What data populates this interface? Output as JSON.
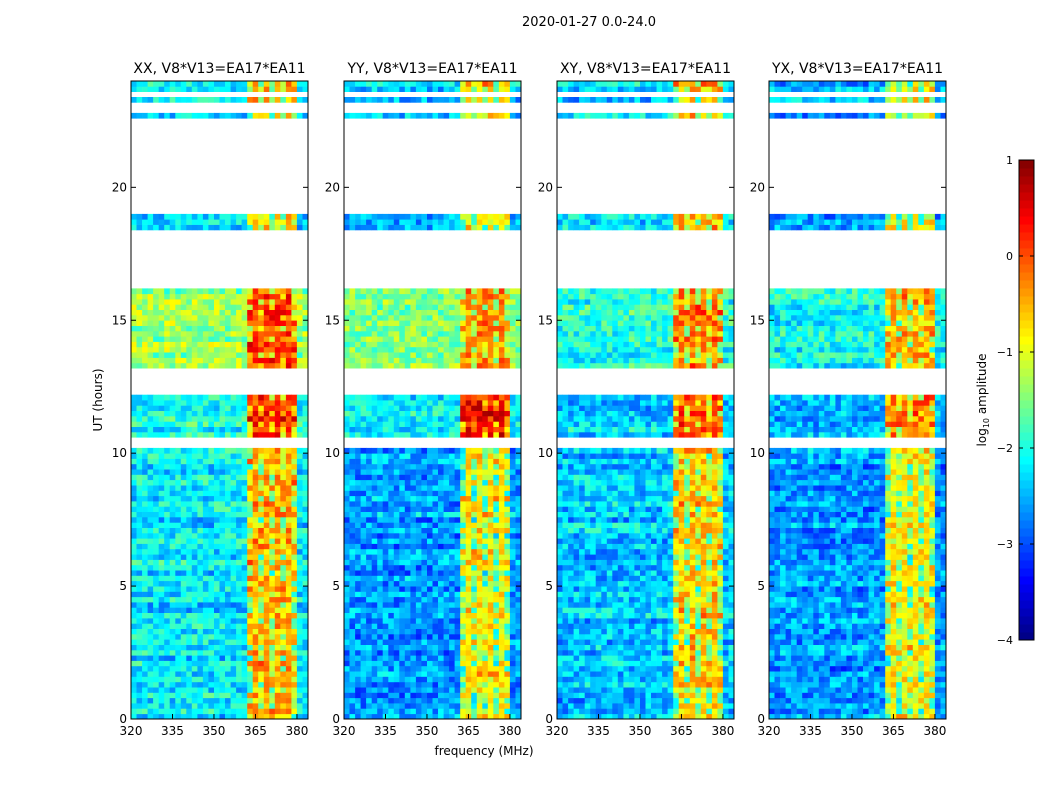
{
  "chart_data": {
    "type": "heatmap",
    "title": "2020-01-27 0.0-24.0",
    "xlabel": "frequency (MHz)",
    "ylabel": "UT (hours)",
    "xlim": [
      320,
      384
    ],
    "ylim": [
      0,
      24
    ],
    "xticks": [
      320,
      335,
      350,
      365,
      380
    ],
    "yticks": [
      0,
      5,
      10,
      15,
      20
    ],
    "colorbar": {
      "label": "log10 amplitude",
      "label_main": "log",
      "label_sub": "10",
      "label_rest": " amplitude",
      "range": [
        -4,
        1
      ],
      "ticks": [
        1,
        0,
        -1,
        -2,
        -3,
        -4
      ],
      "colormap": "jet"
    },
    "flagged_hours": [
      [
        23.4,
        23.6
      ],
      [
        22.7,
        23.1
      ],
      [
        18.9,
        22.5
      ],
      [
        16.2,
        18.2
      ],
      [
        12.2,
        13.0
      ],
      [
        10.2,
        10.5
      ]
    ],
    "rfi_band_mhz": [
      361,
      380
    ],
    "panels": [
      {
        "title": "XX, V8*V13=EA17*EA11",
        "segments": [
          {
            "hours": [
              0,
              10.2
            ],
            "background": -2.2,
            "rfi": -0.5
          },
          {
            "hours": [
              10.5,
              12.2
            ],
            "background": -2.0,
            "rfi": 0.2
          },
          {
            "hours": [
              13.0,
              16.2
            ],
            "background": -1.4,
            "rfi": 0.0
          },
          {
            "hours": [
              18.2,
              24
            ],
            "background": -2.2,
            "rfi": -0.5
          }
        ]
      },
      {
        "title": "YY, V8*V13=EA17*EA11",
        "segments": [
          {
            "hours": [
              0,
              10.2
            ],
            "background": -2.6,
            "rfi": -0.8
          },
          {
            "hours": [
              10.5,
              12.2
            ],
            "background": -2.2,
            "rfi": 0.3
          },
          {
            "hours": [
              13.0,
              16.2
            ],
            "background": -1.6,
            "rfi": -0.4
          },
          {
            "hours": [
              18.2,
              24
            ],
            "background": -2.4,
            "rfi": -0.6
          }
        ]
      },
      {
        "title": "XY, V8*V13=EA17*EA11",
        "segments": [
          {
            "hours": [
              0,
              10.2
            ],
            "background": -2.4,
            "rfi": -0.6
          },
          {
            "hours": [
              10.5,
              12.2
            ],
            "background": -2.3,
            "rfi": 0.1
          },
          {
            "hours": [
              13.0,
              16.2
            ],
            "background": -2.0,
            "rfi": -0.3
          },
          {
            "hours": [
              18.2,
              24
            ],
            "background": -2.3,
            "rfi": -0.5
          }
        ]
      },
      {
        "title": "YX, V8*V13=EA17*EA11",
        "segments": [
          {
            "hours": [
              0,
              10.2
            ],
            "background": -2.6,
            "rfi": -0.8
          },
          {
            "hours": [
              10.5,
              12.2
            ],
            "background": -2.4,
            "rfi": -0.1
          },
          {
            "hours": [
              13.0,
              16.2
            ],
            "background": -2.1,
            "rfi": -0.5
          },
          {
            "hours": [
              18.2,
              24
            ],
            "background": -2.5,
            "rfi": -0.7
          }
        ]
      }
    ]
  }
}
